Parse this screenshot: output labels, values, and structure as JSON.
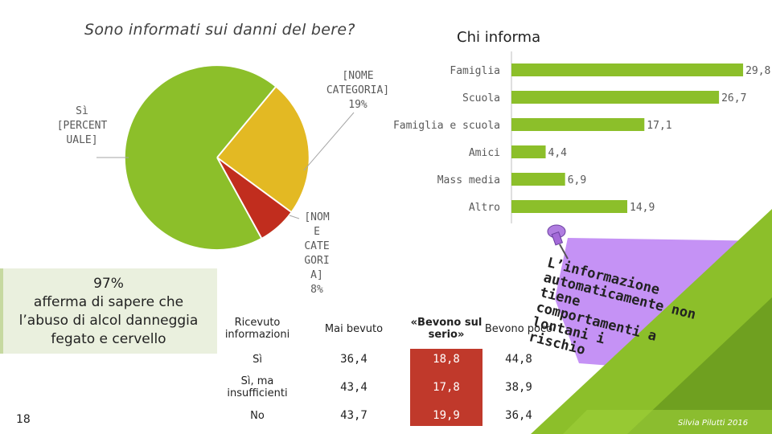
{
  "left_title": "Sono informati sui danni del bere?",
  "right_title": "Chi informa",
  "pie": {
    "label_si": [
      "Sì",
      "[PERCENT",
      "UALE]"
    ],
    "label_no": [
      "[NOME",
      "CATEGORIA]",
      "19%"
    ],
    "label_other": [
      "[NOM",
      "E",
      "CATE",
      "GORI",
      "A]",
      "8%"
    ],
    "slices": [
      {
        "name": "Sì",
        "pct": 73,
        "color": "#8cbf2a"
      },
      {
        "name": "CATEGORIA",
        "pct": 19,
        "color": "#e3b923"
      },
      {
        "name": "CATEGORIA 2",
        "pct": 8,
        "color": "#c12d1e"
      }
    ]
  },
  "chart_data": {
    "type": "bar",
    "categories": [
      "Famiglia",
      "Scuola",
      "Famiglia e scuola",
      "Amici",
      "Mass media",
      "Altro"
    ],
    "values": [
      29.8,
      26.7,
      17.1,
      4.4,
      6.9,
      14.9
    ],
    "value_labels": [
      "29,8",
      "26,7",
      "17,1",
      "4,4",
      "6,9",
      "14,9"
    ],
    "xlim": [
      0,
      30
    ],
    "orientation": "horizontal",
    "bar_color": "#8cbf2a"
  },
  "green_box": {
    "lines": [
      "97%",
      "afferma di sapere che",
      "l’abuso di alcol danneggia",
      "fegato e cervello"
    ]
  },
  "table": {
    "headers": [
      "Ricevuto informazioni",
      "Mai bevuto",
      "«Bevono sul serio»",
      "Bevono poco"
    ],
    "rows": [
      {
        "label": "Sì",
        "values": [
          "36,4",
          "18,8",
          "44,8"
        ]
      },
      {
        "label": "Sì, ma insufficienti",
        "values": [
          "43,4",
          "17,8",
          "38,9"
        ]
      },
      {
        "label": "No",
        "values": [
          "43,7",
          "19,9",
          "36,4"
        ]
      }
    ]
  },
  "note": "L’informazione automaticamente non tiene comportamenti a lontani i rischio",
  "note_lines": [
    "L’informazione",
    "automaticamente non tiene",
    "comportamenti a lontani i",
    "rischio"
  ],
  "page_number": "18",
  "credit": "Silvia Pilutti 2016",
  "colors": {
    "green": "#8cbf2a",
    "yellow": "#e3b923",
    "red": "#c12d1e",
    "lilac": "#c592f5",
    "red_cell": "#c0392b"
  }
}
